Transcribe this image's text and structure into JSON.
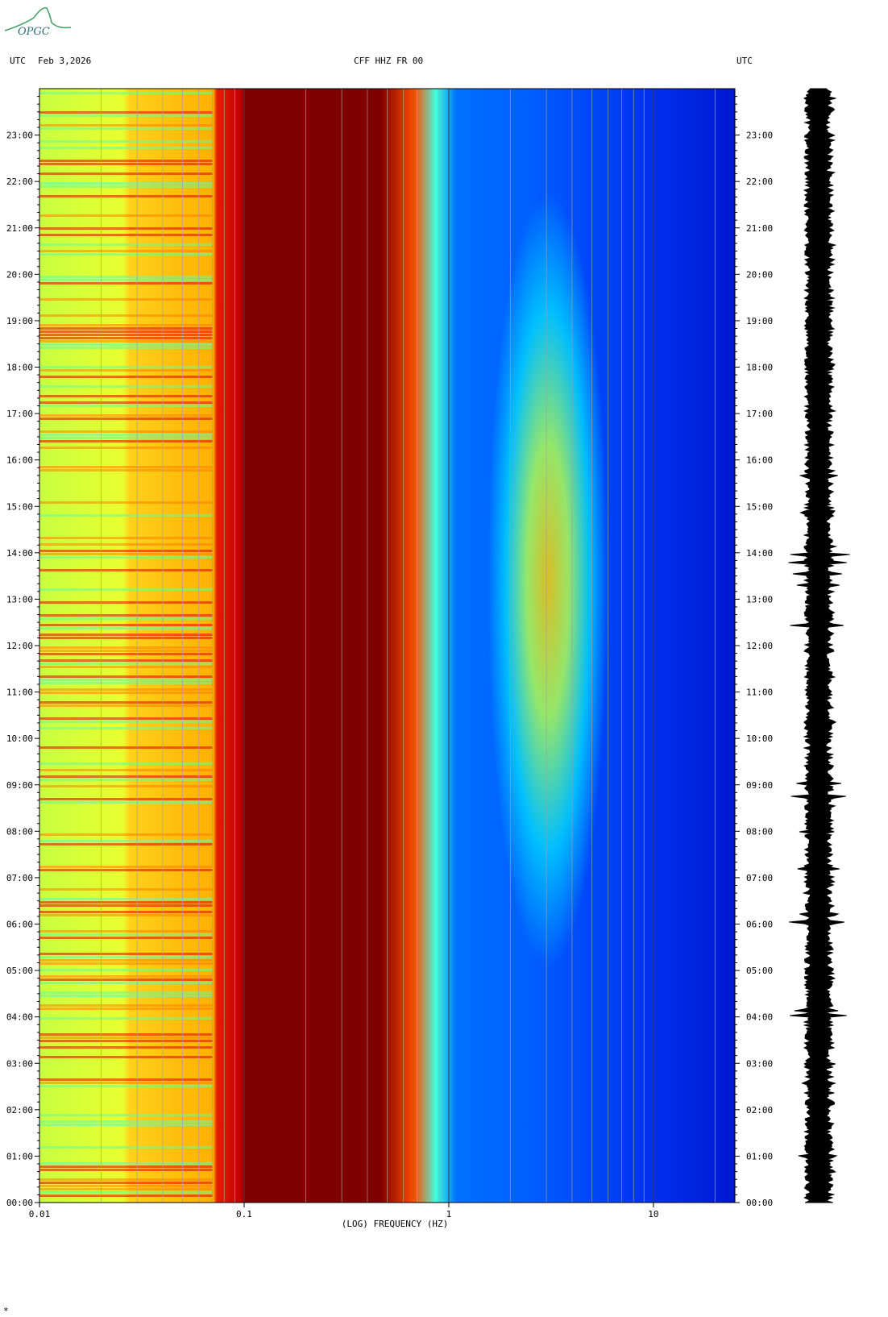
{
  "header": {
    "left_label": "UTC",
    "date": "Feb 3,2026",
    "station": "CFF HHZ FR 00",
    "right_label": "UTC"
  },
  "logo": {
    "text": "OPGC"
  },
  "footer_mark": "*",
  "chart_data": {
    "type": "heatmap",
    "subtype": "spectrogram",
    "xlabel": "(LOG) FREQUENCY (HZ)",
    "x_scale": "log",
    "xlim": [
      0.01,
      25
    ],
    "x_ticks": [
      {
        "value": 0.01,
        "label": "0.01"
      },
      {
        "value": 0.1,
        "label": "0.1"
      },
      {
        "value": 1,
        "label": "1"
      },
      {
        "value": 10,
        "label": "10"
      }
    ],
    "ylim": [
      "00:00",
      "24:00"
    ],
    "y_ticks": [
      "00:00",
      "01:00",
      "02:00",
      "03:00",
      "04:00",
      "05:00",
      "06:00",
      "07:00",
      "08:00",
      "09:00",
      "10:00",
      "11:00",
      "12:00",
      "13:00",
      "14:00",
      "15:00",
      "16:00",
      "17:00",
      "18:00",
      "19:00",
      "20:00",
      "21:00",
      "22:00",
      "23:00"
    ],
    "gridlines_hz": [
      0.02,
      0.03,
      0.04,
      0.05,
      0.06,
      0.07,
      0.08,
      0.09,
      0.2,
      0.3,
      0.4,
      0.5,
      0.6,
      0.7,
      0.8,
      0.9,
      2,
      3,
      4,
      5,
      6,
      7,
      8,
      9,
      20
    ],
    "colormap": [
      "#0000aa",
      "#0033ff",
      "#00a0ff",
      "#00e8ff",
      "#60ffa0",
      "#e8ff30",
      "#ffcc00",
      "#ff6000",
      "#e00000",
      "#800000"
    ],
    "has_seismogram_trace": true
  }
}
